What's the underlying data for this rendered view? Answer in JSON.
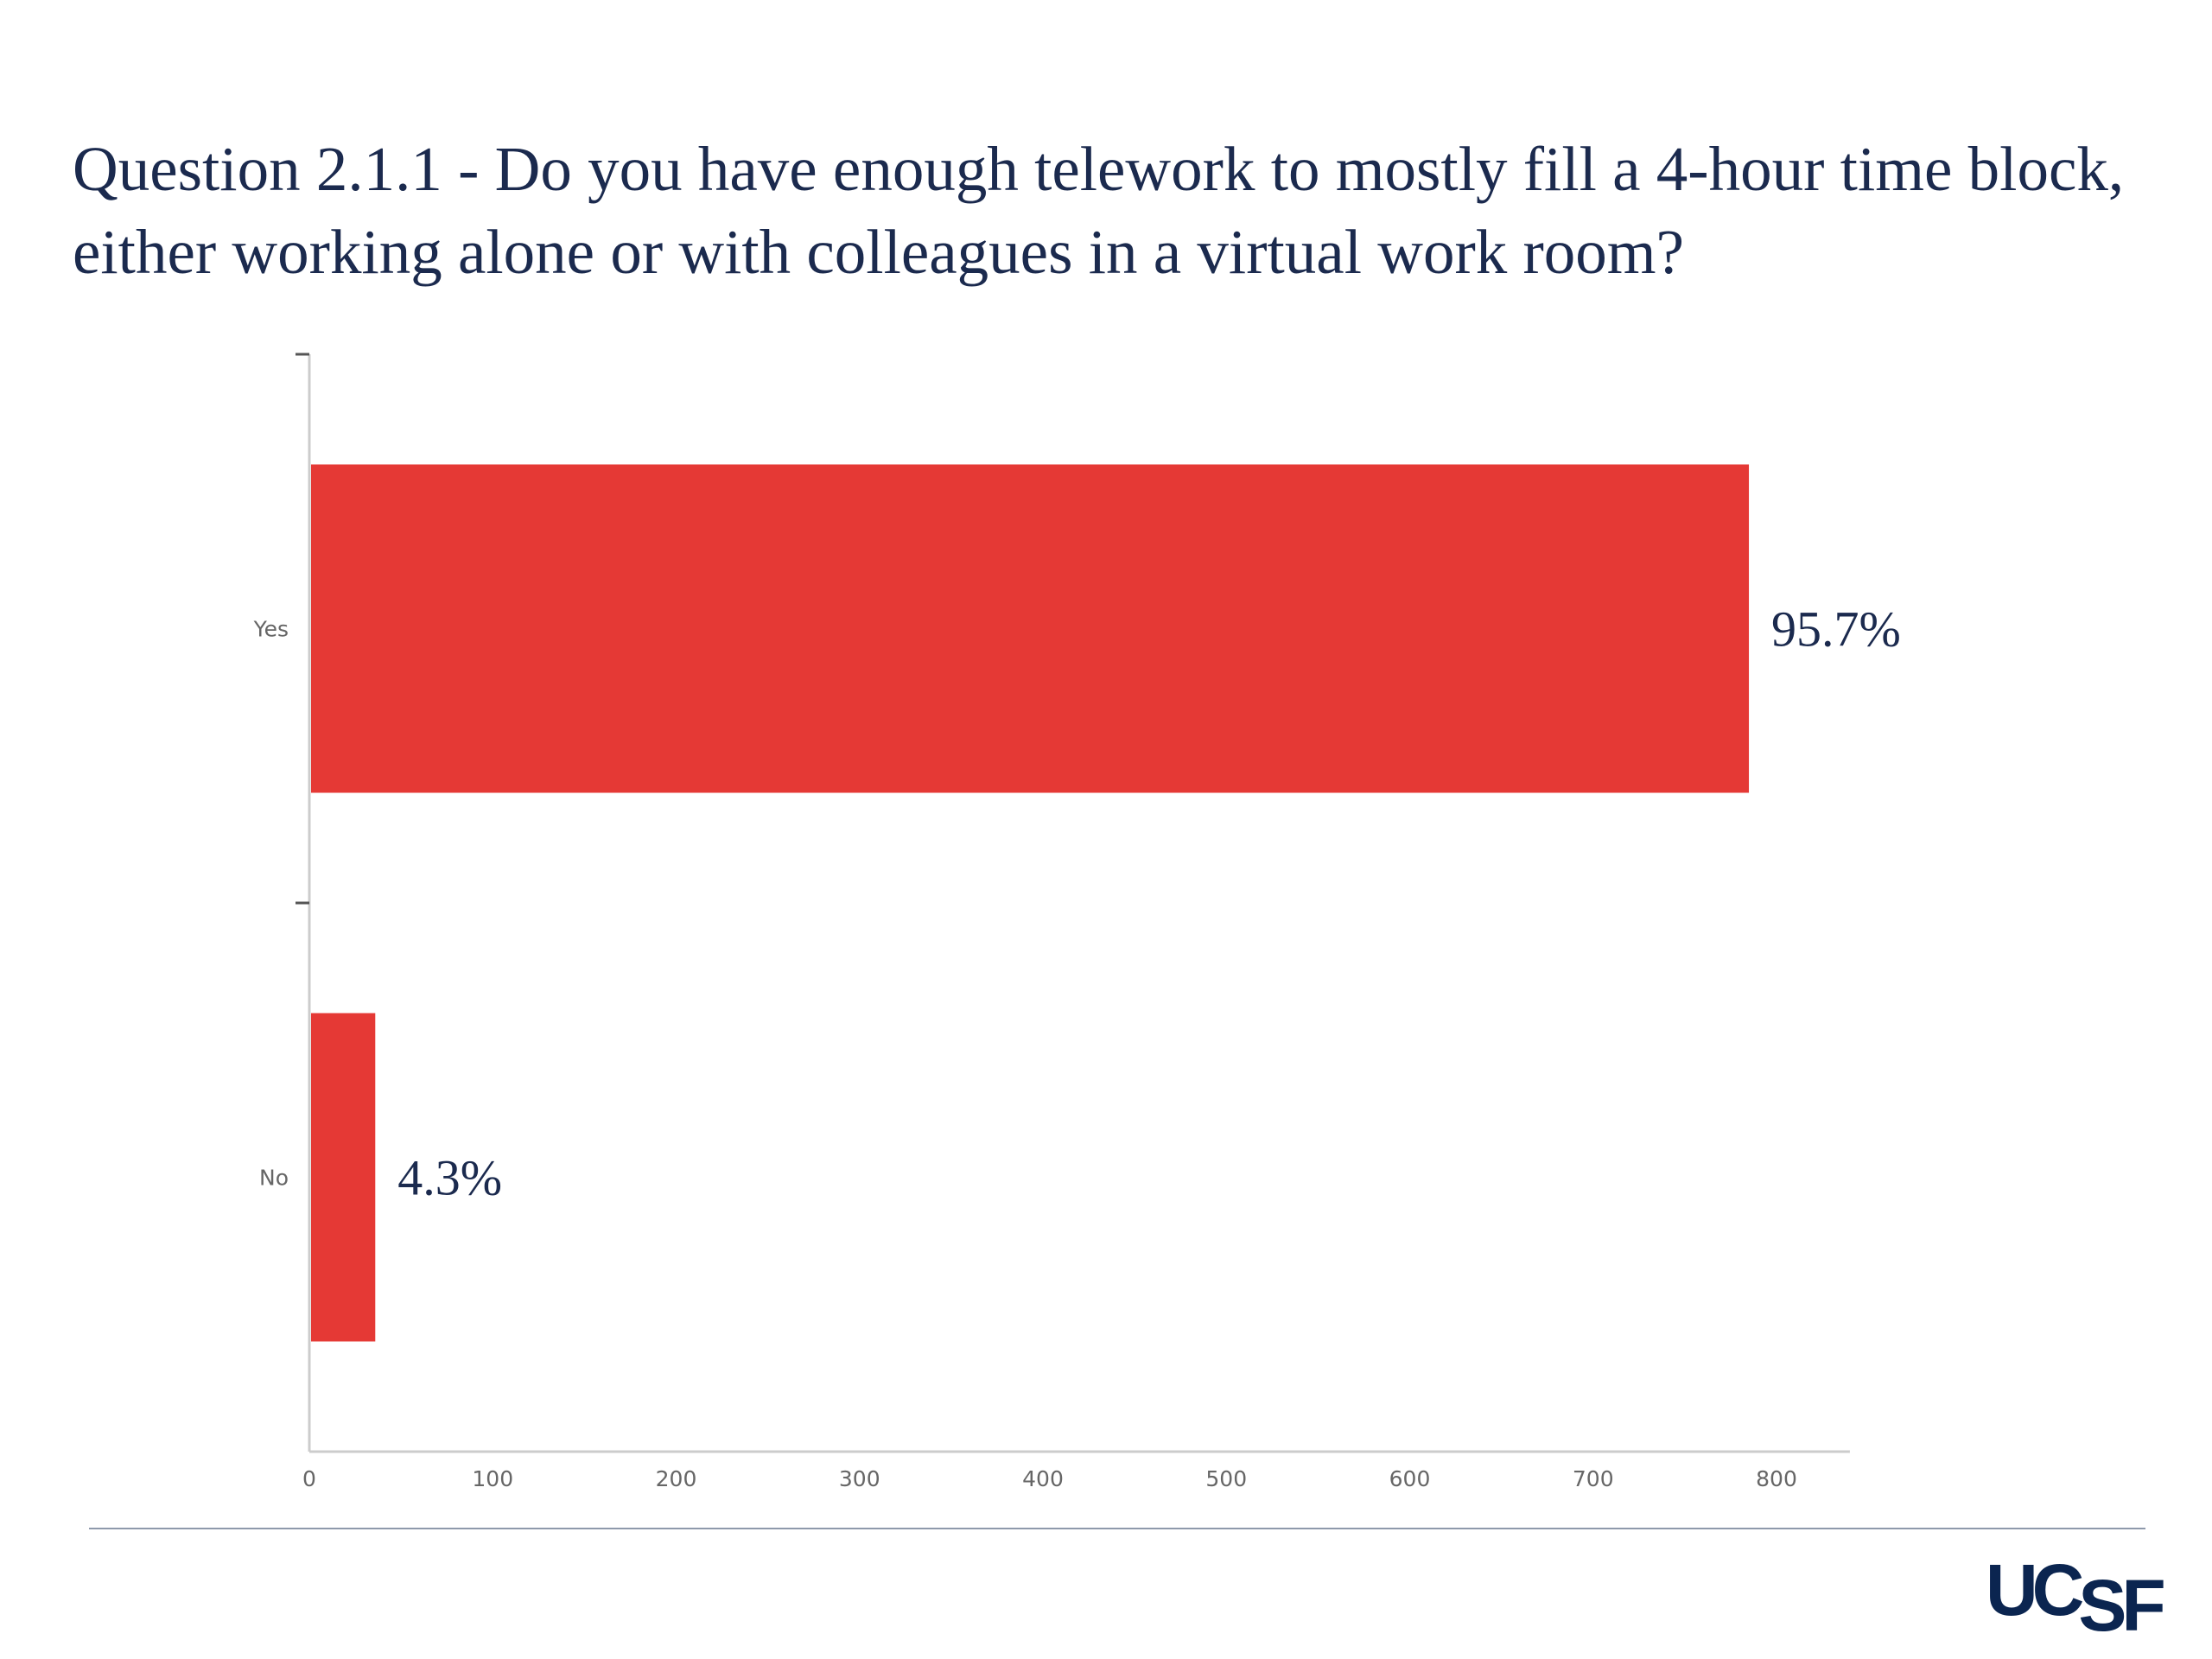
{
  "slide": {
    "title": "Question 2.1.1 - Do you have enough telework to mostly fill a 4-hour time block, either working alone or with colleagues in a virtual work room?",
    "logo": "UCSF"
  },
  "colors": {
    "bar": "#e53935",
    "text": "#1b2a4e",
    "axis": "#cccccc",
    "tick_text": "#666666",
    "rule": "#8e99ab"
  },
  "chart_data": {
    "type": "bar",
    "orientation": "horizontal",
    "categories": [
      "Yes",
      "No"
    ],
    "values": [
      784,
      35
    ],
    "data_labels": [
      "95.7%",
      "4.3%"
    ],
    "xlim": [
      0,
      840
    ],
    "xticks": [
      0,
      100,
      200,
      300,
      400,
      500,
      600,
      700,
      800
    ],
    "grid": false,
    "legend": "none"
  }
}
